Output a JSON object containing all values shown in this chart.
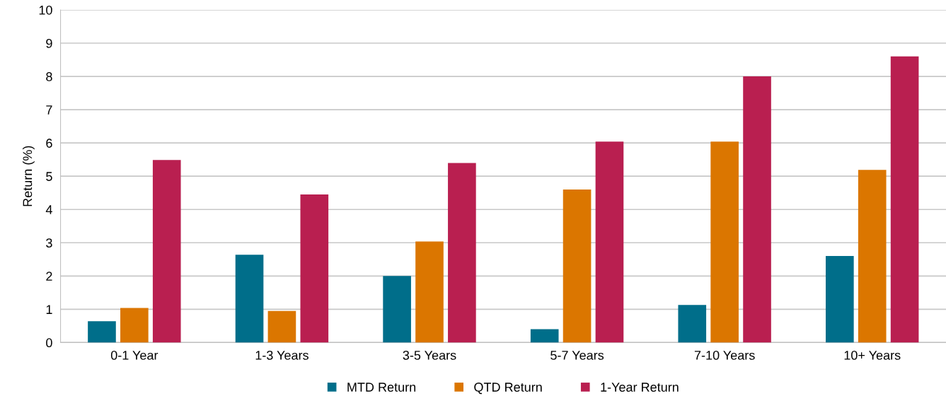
{
  "chart_data": {
    "type": "bar",
    "ylabel": "Return (%)",
    "categories": [
      "0-1 Year",
      "1-3 Years",
      "3-5 Years",
      "5-7 Years",
      "7-10 Years",
      "10+ Years"
    ],
    "series": [
      {
        "name": "MTD Return",
        "color": "#006e8a",
        "values": [
          0.64,
          2.64,
          2.0,
          0.4,
          1.13,
          2.6
        ]
      },
      {
        "name": "QTD Return",
        "color": "#db7600",
        "values": [
          1.04,
          0.95,
          3.04,
          4.6,
          6.04,
          5.19
        ]
      },
      {
        "name": "1-Year Return",
        "color": "#b91f50",
        "values": [
          5.49,
          4.45,
          5.4,
          6.04,
          8.0,
          8.6
        ]
      }
    ],
    "ylim": [
      0,
      10
    ],
    "yticks": [
      0,
      1,
      2,
      3,
      4,
      5,
      6,
      7,
      8,
      9,
      10
    ],
    "grid": "y",
    "legend": "bottom"
  }
}
